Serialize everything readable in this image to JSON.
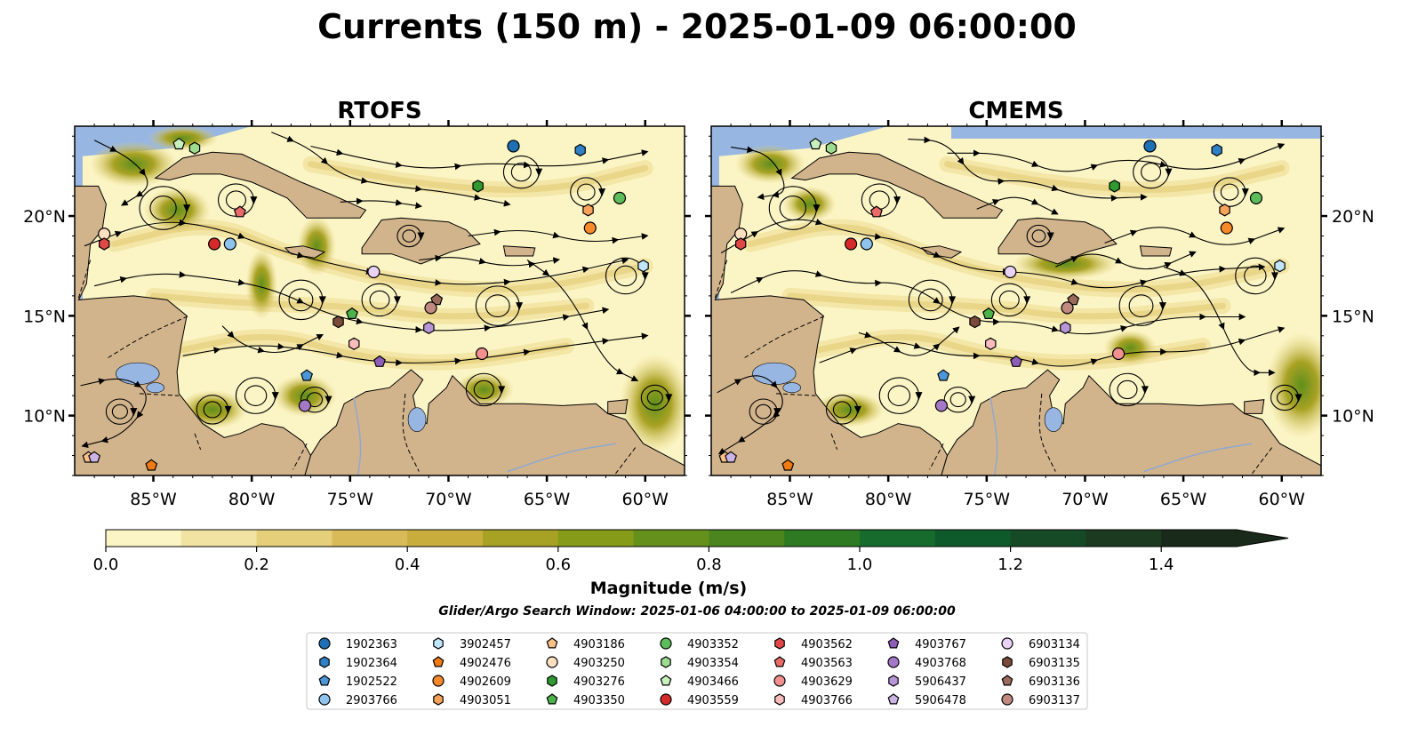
{
  "figure": {
    "title": "Currents (150 m) - 2025-01-09 06:00:00",
    "window_text": "Glider/Argo Search Window: 2025-01-06 04:00:00 to 2025-01-09 06:00:00"
  },
  "colors": {
    "land": "#d2b48c",
    "ocean_no_data": "#97b6e1",
    "streamline": "#000000",
    "colormap": [
      "#fbf5c5",
      "#f1e3a1",
      "#e5cf7b",
      "#d8bb58",
      "#c9ad3c",
      "#a8a224",
      "#869c18",
      "#65901c",
      "#4a861d",
      "#2e7a22",
      "#176b2c",
      "#0f5a2a",
      "#164a26",
      "#1b3a20",
      "#1a2a1a"
    ]
  },
  "map": {
    "lon_range": [
      -89,
      -58
    ],
    "lat_range": [
      7,
      24.5
    ],
    "lon_ticks": [
      -85,
      -80,
      -75,
      -70,
      -65,
      -60
    ],
    "lat_ticks": [
      10,
      15,
      20
    ],
    "lon_tick_labels": [
      "85°W",
      "80°W",
      "75°W",
      "70°W",
      "65°W",
      "60°W"
    ],
    "lat_tick_labels": [
      "10°N",
      "15°N",
      "20°N"
    ]
  },
  "panels": [
    {
      "title": "RTOFS"
    },
    {
      "title": "CMEMS"
    }
  ],
  "colorbar": {
    "label": "Magnitude (m/s)",
    "range": [
      0,
      1.5
    ],
    "extend": "max",
    "ticks": [
      0.0,
      0.2,
      0.4,
      0.6,
      0.8,
      1.0,
      1.2,
      1.4
    ],
    "tick_labels": [
      "0.0",
      "0.2",
      "0.4",
      "0.6",
      "0.8",
      "1.0",
      "1.2",
      "1.4"
    ]
  },
  "floats": [
    {
      "id": "1902363",
      "color": "#1f6fb4",
      "marker": "circle",
      "lon": -66.7,
      "lat": 23.5
    },
    {
      "id": "1902364",
      "color": "#2f80c4",
      "marker": "hexagon",
      "lon": -63.3,
      "lat": 23.3
    },
    {
      "id": "1902522",
      "color": "#4b96d8",
      "marker": "pentagon",
      "lon": -77.2,
      "lat": 12.0
    },
    {
      "id": "2903766",
      "color": "#8fc3ee",
      "marker": "circle",
      "lon": -81.1,
      "lat": 18.6
    },
    {
      "id": "3902457",
      "color": "#bfe4fb",
      "marker": "hexagon",
      "lon": -60.1,
      "lat": 17.5
    },
    {
      "id": "4902476",
      "color": "#f07a14",
      "marker": "pentagon",
      "lon": -85.1,
      "lat": 7.5
    },
    {
      "id": "4902609",
      "color": "#f6892a",
      "marker": "circle",
      "lon": -62.8,
      "lat": 19.4
    },
    {
      "id": "4903051",
      "color": "#f9a35a",
      "marker": "hexagon",
      "lon": -62.9,
      "lat": 20.3
    },
    {
      "id": "4903186",
      "color": "#fbc089",
      "marker": "pentagon",
      "lon": -88.3,
      "lat": 7.9
    },
    {
      "id": "4903250",
      "color": "#fde0c0",
      "marker": "circle",
      "lon": -87.5,
      "lat": 19.1
    },
    {
      "id": "4903276",
      "color": "#2f9a2f",
      "marker": "hexagon",
      "lon": -68.5,
      "lat": 21.5
    },
    {
      "id": "4903350",
      "color": "#4cb34a",
      "marker": "pentagon",
      "lon": -74.9,
      "lat": 15.1
    },
    {
      "id": "4903352",
      "color": "#5cbd5a",
      "marker": "circle",
      "lon": -61.3,
      "lat": 20.9
    },
    {
      "id": "4903354",
      "color": "#9ddc8f",
      "marker": "hexagon",
      "lon": -82.9,
      "lat": 23.4
    },
    {
      "id": "4903466",
      "color": "#c8f0bd",
      "marker": "pentagon",
      "lon": -83.7,
      "lat": 23.6
    },
    {
      "id": "4903559",
      "color": "#d62a2a",
      "marker": "circle",
      "lon": -81.9,
      "lat": 18.6
    },
    {
      "id": "4903562",
      "color": "#e04848",
      "marker": "hexagon",
      "lon": -87.5,
      "lat": 18.6
    },
    {
      "id": "4903563",
      "color": "#ea6a6a",
      "marker": "pentagon",
      "lon": -80.6,
      "lat": 20.2
    },
    {
      "id": "4903629",
      "color": "#f29090",
      "marker": "circle",
      "lon": -68.3,
      "lat": 13.1
    },
    {
      "id": "4903766",
      "color": "#f9bcbc",
      "marker": "hexagon",
      "lon": -74.8,
      "lat": 13.6
    },
    {
      "id": "4903767",
      "color": "#8e5db8",
      "marker": "pentagon",
      "lon": -73.5,
      "lat": 12.7
    },
    {
      "id": "4903768",
      "color": "#a478c6",
      "marker": "circle",
      "lon": -77.3,
      "lat": 10.5
    },
    {
      "id": "5906437",
      "color": "#b895d6",
      "marker": "hexagon",
      "lon": -71.0,
      "lat": 14.4
    },
    {
      "id": "5906478",
      "color": "#cdb4e6",
      "marker": "pentagon",
      "lon": -88.0,
      "lat": 7.9
    },
    {
      "id": "6903134",
      "color": "#ead2f4",
      "marker": "circle",
      "lon": -73.8,
      "lat": 17.2
    },
    {
      "id": "6903135",
      "color": "#7a4a3a",
      "marker": "hexagon",
      "lon": -75.6,
      "lat": 14.7
    },
    {
      "id": "6903136",
      "color": "#9a6a5a",
      "marker": "pentagon",
      "lon": -70.6,
      "lat": 15.8
    },
    {
      "id": "6903137",
      "color": "#c08a80",
      "marker": "circle",
      "lon": -70.9,
      "lat": 15.4
    }
  ]
}
